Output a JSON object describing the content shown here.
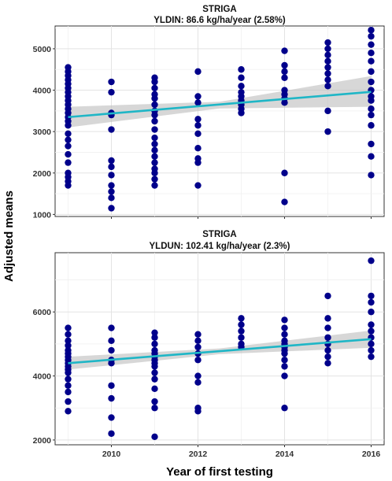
{
  "figure": {
    "ylabel": "Adjusted means",
    "xlabel": "Year of first testing"
  },
  "chart_data": [
    {
      "type": "scatter",
      "title": "STRIGA",
      "subtitle": "YLDIN: 86.6 kg/ha/year (2.58%)",
      "xlim": [
        2008.7,
        2016.3
      ],
      "ylim": [
        950,
        5550
      ],
      "xticks": [
        2010,
        2012,
        2014,
        2016
      ],
      "yticks": [
        1000,
        2000,
        3000,
        4000,
        5000
      ],
      "point_color": "#00008b",
      "fit_color": "#1fb6c6",
      "band_color": "#bdbdbd",
      "fit": {
        "x": [
          2009,
          2016
        ],
        "y": [
          3350,
          3960
        ]
      },
      "band": {
        "x": [
          2009,
          2012.5,
          2016
        ],
        "lower": [
          3100,
          3560,
          3600
        ],
        "upper": [
          3600,
          3720,
          4340
        ]
      },
      "points": [
        [
          2009,
          4550
        ],
        [
          2009,
          4450
        ],
        [
          2009,
          4350
        ],
        [
          2009,
          4250
        ],
        [
          2009,
          4150
        ],
        [
          2009,
          4050
        ],
        [
          2009,
          3950
        ],
        [
          2009,
          3850
        ],
        [
          2009,
          3750
        ],
        [
          2009,
          3650
        ],
        [
          2009,
          3550
        ],
        [
          2009,
          3450
        ],
        [
          2009,
          3350
        ],
        [
          2009,
          3250
        ],
        [
          2009,
          3150
        ],
        [
          2009,
          2950
        ],
        [
          2009,
          2800
        ],
        [
          2009,
          2650
        ],
        [
          2009,
          2450
        ],
        [
          2009,
          2250
        ],
        [
          2009,
          2000
        ],
        [
          2009,
          1900
        ],
        [
          2009,
          1800
        ],
        [
          2009,
          1700
        ],
        [
          2010,
          4200
        ],
        [
          2010,
          3950
        ],
        [
          2010,
          3450
        ],
        [
          2010,
          3400
        ],
        [
          2010,
          3050
        ],
        [
          2010,
          2300
        ],
        [
          2010,
          2150
        ],
        [
          2010,
          1950
        ],
        [
          2010,
          1700
        ],
        [
          2010,
          1550
        ],
        [
          2010,
          1400
        ],
        [
          2010,
          1150
        ],
        [
          2011,
          4300
        ],
        [
          2011,
          4200
        ],
        [
          2011,
          4050
        ],
        [
          2011,
          3900
        ],
        [
          2011,
          3800
        ],
        [
          2011,
          3650
        ],
        [
          2011,
          3500
        ],
        [
          2011,
          3400
        ],
        [
          2011,
          3250
        ],
        [
          2011,
          3050
        ],
        [
          2011,
          2850
        ],
        [
          2011,
          2700
        ],
        [
          2011,
          2550
        ],
        [
          2011,
          2400
        ],
        [
          2011,
          2250
        ],
        [
          2011,
          2100
        ],
        [
          2011,
          2000
        ],
        [
          2011,
          1850
        ],
        [
          2011,
          1700
        ],
        [
          2012,
          4450
        ],
        [
          2012,
          3850
        ],
        [
          2012,
          3700
        ],
        [
          2012,
          3300
        ],
        [
          2012,
          3150
        ],
        [
          2012,
          2950
        ],
        [
          2012,
          2600
        ],
        [
          2012,
          2350
        ],
        [
          2012,
          2250
        ],
        [
          2012,
          1700
        ],
        [
          2013,
          4500
        ],
        [
          2013,
          4300
        ],
        [
          2013,
          4100
        ],
        [
          2013,
          3950
        ],
        [
          2013,
          3850
        ],
        [
          2013,
          3750
        ],
        [
          2013,
          3650
        ],
        [
          2013,
          3550
        ],
        [
          2013,
          3450
        ],
        [
          2014,
          4950
        ],
        [
          2014,
          4600
        ],
        [
          2014,
          4450
        ],
        [
          2014,
          4300
        ],
        [
          2014,
          4000
        ],
        [
          2014,
          3900
        ],
        [
          2014,
          3800
        ],
        [
          2014,
          3700
        ],
        [
          2014,
          2000
        ],
        [
          2014,
          1300
        ],
        [
          2015,
          5150
        ],
        [
          2015,
          5000
        ],
        [
          2015,
          4850
        ],
        [
          2015,
          4700
        ],
        [
          2015,
          4550
        ],
        [
          2015,
          4400
        ],
        [
          2015,
          4250
        ],
        [
          2015,
          4100
        ],
        [
          2015,
          3500
        ],
        [
          2015,
          3000
        ],
        [
          2016,
          5450
        ],
        [
          2016,
          5300
        ],
        [
          2016,
          5100
        ],
        [
          2016,
          4900
        ],
        [
          2016,
          4700
        ],
        [
          2016,
          4450
        ],
        [
          2016,
          4200
        ],
        [
          2016,
          4000
        ],
        [
          2016,
          3850
        ],
        [
          2016,
          3750
        ],
        [
          2016,
          3550
        ],
        [
          2016,
          3400
        ],
        [
          2016,
          3150
        ],
        [
          2016,
          2700
        ],
        [
          2016,
          2400
        ],
        [
          2016,
          1950
        ]
      ]
    },
    {
      "type": "scatter",
      "title": "STRIGA",
      "subtitle": "YLDUN: 102.41 kg/ha/year (2.3%)",
      "xlim": [
        2008.7,
        2016.3
      ],
      "ylim": [
        1850,
        7850
      ],
      "xticks": [
        2010,
        2012,
        2014,
        2016
      ],
      "yticks": [
        2000,
        4000,
        6000
      ],
      "point_color": "#00008b",
      "fit_color": "#1fb6c6",
      "band_color": "#bdbdbd",
      "fit": {
        "x": [
          2009,
          2016
        ],
        "y": [
          4400,
          5150
        ]
      },
      "band": {
        "x": [
          2009,
          2012.5,
          2016
        ],
        "lower": [
          4200,
          4680,
          4880
        ],
        "upper": [
          4600,
          4860,
          5420
        ]
      },
      "points": [
        [
          2009,
          5500
        ],
        [
          2009,
          5300
        ],
        [
          2009,
          5100
        ],
        [
          2009,
          4950
        ],
        [
          2009,
          4800
        ],
        [
          2009,
          4700
        ],
        [
          2009,
          4600
        ],
        [
          2009,
          4500
        ],
        [
          2009,
          4400
        ],
        [
          2009,
          4300
        ],
        [
          2009,
          4200
        ],
        [
          2009,
          4100
        ],
        [
          2009,
          3900
        ],
        [
          2009,
          3700
        ],
        [
          2009,
          3500
        ],
        [
          2009,
          3200
        ],
        [
          2009,
          2900
        ],
        [
          2010,
          5500
        ],
        [
          2010,
          5100
        ],
        [
          2010,
          4800
        ],
        [
          2010,
          4500
        ],
        [
          2010,
          4400
        ],
        [
          2010,
          3700
        ],
        [
          2010,
          3300
        ],
        [
          2010,
          2700
        ],
        [
          2010,
          2200
        ],
        [
          2011,
          5350
        ],
        [
          2011,
          5200
        ],
        [
          2011,
          5000
        ],
        [
          2011,
          4800
        ],
        [
          2011,
          4700
        ],
        [
          2011,
          4600
        ],
        [
          2011,
          4500
        ],
        [
          2011,
          4400
        ],
        [
          2011,
          4300
        ],
        [
          2011,
          4100
        ],
        [
          2011,
          3900
        ],
        [
          2011,
          3600
        ],
        [
          2011,
          3200
        ],
        [
          2011,
          3000
        ],
        [
          2011,
          2100
        ],
        [
          2012,
          5300
        ],
        [
          2012,
          5100
        ],
        [
          2012,
          4900
        ],
        [
          2012,
          4700
        ],
        [
          2012,
          4500
        ],
        [
          2012,
          4000
        ],
        [
          2012,
          3800
        ],
        [
          2012,
          3000
        ],
        [
          2012,
          2900
        ],
        [
          2013,
          5800
        ],
        [
          2013,
          5600
        ],
        [
          2013,
          5400
        ],
        [
          2013,
          5200
        ],
        [
          2013,
          5000
        ],
        [
          2013,
          4900
        ],
        [
          2014,
          5750
        ],
        [
          2014,
          5500
        ],
        [
          2014,
          5300
        ],
        [
          2014,
          5100
        ],
        [
          2014,
          5000
        ],
        [
          2014,
          4900
        ],
        [
          2014,
          4800
        ],
        [
          2014,
          4700
        ],
        [
          2014,
          4500
        ],
        [
          2014,
          4300
        ],
        [
          2014,
          4000
        ],
        [
          2014,
          3000
        ],
        [
          2015,
          6500
        ],
        [
          2015,
          5800
        ],
        [
          2015,
          5500
        ],
        [
          2015,
          5200
        ],
        [
          2015,
          5000
        ],
        [
          2015,
          4800
        ],
        [
          2015,
          4600
        ],
        [
          2015,
          4400
        ],
        [
          2016,
          7600
        ],
        [
          2016,
          6500
        ],
        [
          2016,
          6300
        ],
        [
          2016,
          6000
        ],
        [
          2016,
          5600
        ],
        [
          2016,
          5400
        ],
        [
          2016,
          5200
        ],
        [
          2016,
          5000
        ],
        [
          2016,
          4800
        ],
        [
          2016,
          4600
        ]
      ]
    }
  ]
}
